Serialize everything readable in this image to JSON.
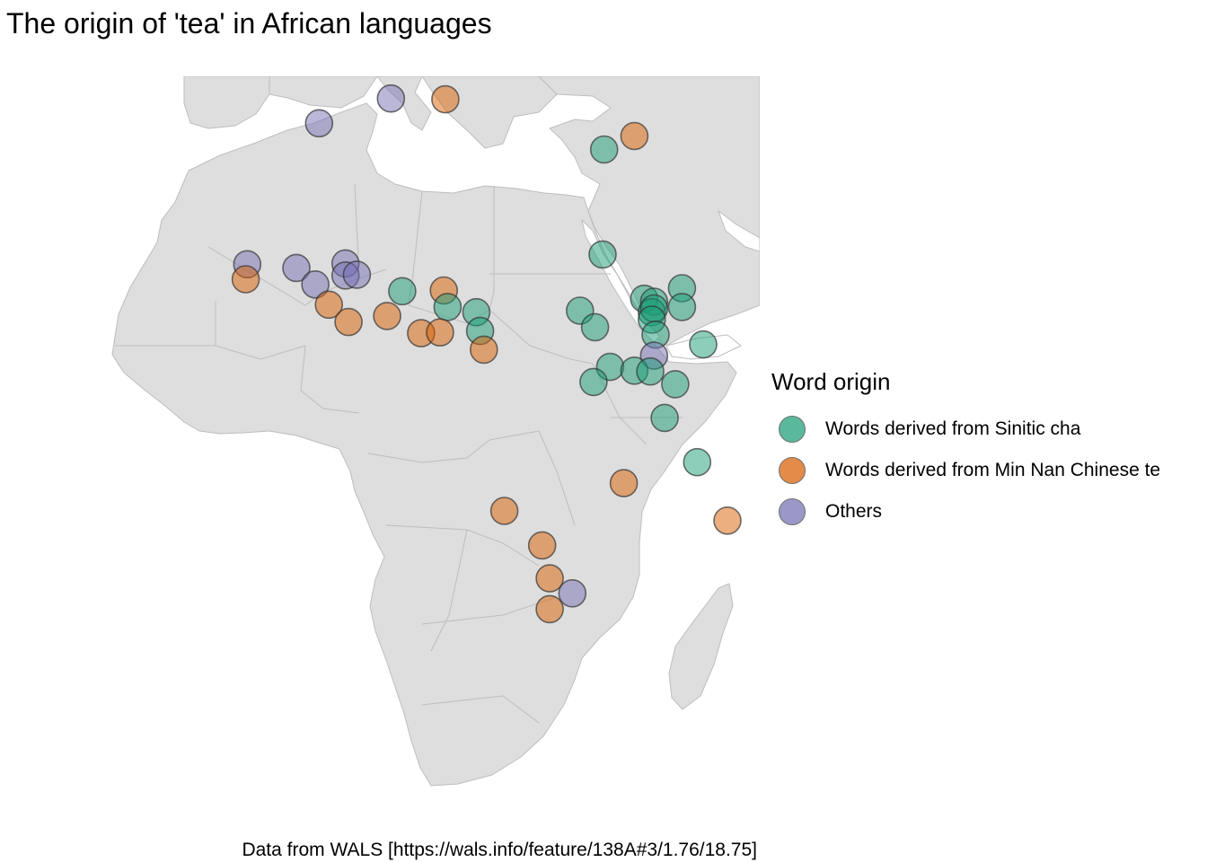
{
  "title": "The origin of 'tea' in African languages",
  "caption": "Data from WALS [https://wals.info/feature/138A#3/1.76/18.75]",
  "map_colors": {
    "land": "#dedede",
    "border": "#bdbdbd",
    "water": "#ffffff"
  },
  "legend": {
    "title": "Word origin",
    "items": [
      {
        "key": "cha",
        "label": "Words derived from Sinitic cha",
        "color": "#1b9e77"
      },
      {
        "key": "te",
        "label": "Words derived from Min Nan Chinese te",
        "color": "#d95f02"
      },
      {
        "key": "other",
        "label": "Others",
        "color": "#7570b3"
      }
    ]
  },
  "points": [
    {
      "lon": 3.0,
      "lat": 36.8,
      "origin": "other"
    },
    {
      "lon": -6.5,
      "lat": 33.5,
      "origin": "other"
    },
    {
      "lon": 10.2,
      "lat": 36.7,
      "origin": "te"
    },
    {
      "lon": 35.2,
      "lat": 31.8,
      "origin": "te"
    },
    {
      "lon": 31.2,
      "lat": 30.0,
      "origin": "cha"
    },
    {
      "lon": 31.0,
      "lat": 16.0,
      "origin": "cha"
    },
    {
      "lon": -16.0,
      "lat": 14.7,
      "origin": "other"
    },
    {
      "lon": -16.2,
      "lat": 12.7,
      "origin": "te"
    },
    {
      "lon": -9.5,
      "lat": 14.2,
      "origin": "other"
    },
    {
      "lon": -7.0,
      "lat": 12.0,
      "origin": "other"
    },
    {
      "lon": -3.0,
      "lat": 14.8,
      "origin": "other"
    },
    {
      "lon": -3.0,
      "lat": 13.2,
      "origin": "other"
    },
    {
      "lon": -1.5,
      "lat": 13.3,
      "origin": "other"
    },
    {
      "lon": -5.2,
      "lat": 9.3,
      "origin": "te"
    },
    {
      "lon": -2.6,
      "lat": 7.0,
      "origin": "te"
    },
    {
      "lon": 2.5,
      "lat": 7.8,
      "origin": "te"
    },
    {
      "lon": 4.5,
      "lat": 11.1,
      "origin": "cha"
    },
    {
      "lon": 10.0,
      "lat": 11.2,
      "origin": "te"
    },
    {
      "lon": 10.5,
      "lat": 9.0,
      "origin": "cha"
    },
    {
      "lon": 14.3,
      "lat": 8.3,
      "origin": "cha"
    },
    {
      "lon": 7.0,
      "lat": 5.5,
      "origin": "te"
    },
    {
      "lon": 9.5,
      "lat": 5.6,
      "origin": "te"
    },
    {
      "lon": 14.8,
      "lat": 5.8,
      "origin": "cha"
    },
    {
      "lon": 15.3,
      "lat": 3.3,
      "origin": "te"
    },
    {
      "lon": 28.0,
      "lat": 8.5,
      "origin": "cha"
    },
    {
      "lon": 30.0,
      "lat": 6.3,
      "origin": "cha"
    },
    {
      "lon": 36.5,
      "lat": 10.1,
      "origin": "cha"
    },
    {
      "lon": 37.8,
      "lat": 9.7,
      "origin": "cha"
    },
    {
      "lon": 37.5,
      "lat": 8.3,
      "origin": "cha"
    },
    {
      "lon": 37.8,
      "lat": 8.8,
      "origin": "cha"
    },
    {
      "lon": 37.5,
      "lat": 7.3,
      "origin": "cha"
    },
    {
      "lon": 38.0,
      "lat": 5.3,
      "origin": "cha"
    },
    {
      "lon": 41.5,
      "lat": 11.5,
      "origin": "cha"
    },
    {
      "lon": 41.5,
      "lat": 9.0,
      "origin": "cha"
    },
    {
      "lon": 44.3,
      "lat": 4.0,
      "origin": "cha"
    },
    {
      "lon": 37.8,
      "lat": 2.5,
      "origin": "other"
    },
    {
      "lon": 32.0,
      "lat": 1.0,
      "origin": "cha"
    },
    {
      "lon": 35.2,
      "lat": 0.5,
      "origin": "cha"
    },
    {
      "lon": 37.3,
      "lat": 0.4,
      "origin": "cha"
    },
    {
      "lon": 29.8,
      "lat": -1.0,
      "origin": "cha"
    },
    {
      "lon": 40.6,
      "lat": -1.3,
      "origin": "cha"
    },
    {
      "lon": 39.2,
      "lat": -5.8,
      "origin": "cha"
    },
    {
      "lon": 43.5,
      "lat": -11.7,
      "origin": "cha"
    },
    {
      "lon": 33.8,
      "lat": -14.5,
      "origin": "te"
    },
    {
      "lon": 47.5,
      "lat": -19.5,
      "origin": "te"
    },
    {
      "lon": 18.0,
      "lat": -18.2,
      "origin": "te"
    },
    {
      "lon": 23.0,
      "lat": -22.8,
      "origin": "te"
    },
    {
      "lon": 24.0,
      "lat": -27.2,
      "origin": "te"
    },
    {
      "lon": 27.0,
      "lat": -29.2,
      "origin": "other"
    },
    {
      "lon": 24.0,
      "lat": -31.3,
      "origin": "te"
    }
  ]
}
